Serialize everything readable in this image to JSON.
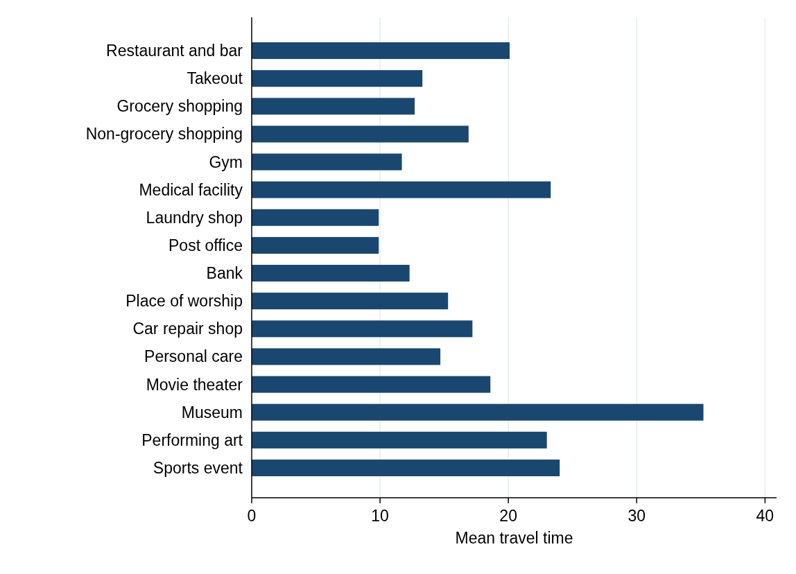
{
  "chart_data": {
    "type": "bar",
    "orientation": "horizontal",
    "xlabel": "Mean travel time",
    "categories": [
      "Restaurant and bar",
      "Takeout",
      "Grocery shopping",
      "Non-grocery shopping",
      "Gym",
      "Medical facility",
      "Laundry shop",
      "Post office",
      "Bank",
      "Place of worship",
      "Car repair shop",
      "Personal care",
      "Movie theater",
      "Museum",
      "Performing art",
      "Sports event"
    ],
    "values": [
      20.1,
      13.3,
      12.7,
      16.9,
      11.7,
      23.3,
      9.9,
      9.9,
      12.3,
      15.3,
      17.2,
      14.7,
      18.6,
      35.2,
      23.0,
      24.0
    ],
    "color": "#1a476f",
    "xlim": [
      0,
      40.9
    ],
    "xticks": [
      0,
      10,
      20,
      30,
      40
    ],
    "grid": "x"
  }
}
